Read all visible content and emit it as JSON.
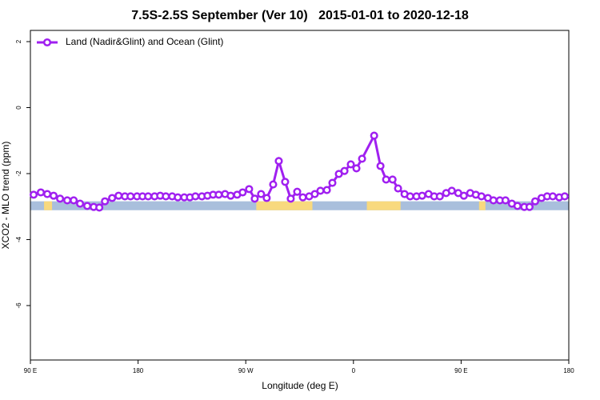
{
  "chart_data": {
    "type": "line",
    "title": "7.5S-2.5S September (Ver 10)   2015-01-01 to 2020-12-18",
    "xlabel": "Longitude (deg E)",
    "ylabel": "XCO2 - MLO trend (ppm)",
    "xlim": [
      90,
      540
    ],
    "ylim": [
      -7.65,
      2.34
    ],
    "xticks": [
      {
        "value": 90,
        "label": "90 E"
      },
      180,
      {
        "value": 270,
        "label": "90 W"
      },
      {
        "value": 360,
        "label": "0"
      },
      {
        "value": 450,
        "label": "90 E"
      },
      {
        "value": 540,
        "label": "180"
      }
    ],
    "yticks": [
      2,
      0,
      -2,
      -4,
      -6
    ],
    "legend": "top-left",
    "surface_band": {
      "ymin": -3.11,
      "ymax": -2.84,
      "ocean_color": "#a9bfdc",
      "land_color": "#f8d97e",
      "land": [
        [
          101.4,
          108.1
        ],
        [
          278.8,
          325.7
        ],
        [
          371.2,
          399.4
        ],
        [
          465,
          470.3
        ]
      ]
    },
    "x": [
      92.7,
      98.7,
      104.1,
      109.4,
      114.8,
      120.8,
      126.2,
      131.5,
      137.5,
      142.9,
      147.6,
      152.3,
      158.3,
      163.7,
      169.0,
      173.7,
      179.1,
      183.7,
      188.4,
      193.8,
      198.5,
      203.2,
      208.5,
      213.2,
      218.6,
      223.3,
      227.9,
      233.3,
      238.0,
      242.7,
      247.4,
      252.7,
      257.4,
      262.8,
      267.4,
      272.8,
      277.5,
      282.8,
      287.5,
      292.9,
      297.6,
      302.9,
      307.6,
      313.0,
      317.7,
      323.0,
      327.7,
      332.4,
      337.8,
      342.4,
      347.8,
      352.5,
      357.8,
      362.5,
      367.2,
      377.3,
      382.6,
      387.3,
      392.7,
      397.3,
      402.7,
      407.4,
      412.7,
      417.4,
      422.8,
      427.5,
      432.2,
      437.5,
      442.2,
      447.6,
      452.3,
      457.6,
      462.3,
      467.0,
      472.4,
      477.0,
      482.4,
      487.1,
      492.4,
      497.1,
      502.8,
      507.2,
      511.9,
      517.2,
      521.9,
      526.6,
      532.0,
      536.6
    ],
    "series": [
      {
        "name": "Land (Nadir&Glint) and Ocean (Glint)",
        "color": "#a020f0",
        "values": [
          -2.64,
          -2.57,
          -2.62,
          -2.67,
          -2.76,
          -2.81,
          -2.81,
          -2.91,
          -2.98,
          -3.01,
          -3.03,
          -2.84,
          -2.74,
          -2.67,
          -2.69,
          -2.69,
          -2.69,
          -2.69,
          -2.69,
          -2.69,
          -2.67,
          -2.69,
          -2.69,
          -2.72,
          -2.72,
          -2.72,
          -2.69,
          -2.69,
          -2.67,
          -2.64,
          -2.64,
          -2.62,
          -2.67,
          -2.64,
          -2.57,
          -2.47,
          -2.76,
          -2.62,
          -2.74,
          -2.33,
          -1.62,
          -2.25,
          -2.76,
          -2.55,
          -2.72,
          -2.69,
          -2.62,
          -2.52,
          -2.5,
          -2.28,
          -2.01,
          -1.92,
          -1.72,
          -1.84,
          -1.55,
          -0.85,
          -1.77,
          -2.18,
          -2.18,
          -2.45,
          -2.62,
          -2.69,
          -2.69,
          -2.67,
          -2.62,
          -2.69,
          -2.69,
          -2.59,
          -2.52,
          -2.59,
          -2.67,
          -2.59,
          -2.64,
          -2.69,
          -2.74,
          -2.81,
          -2.81,
          -2.81,
          -2.91,
          -2.98,
          -3.01,
          -3.01,
          -2.84,
          -2.74,
          -2.69,
          -2.69,
          -2.72,
          -2.69
        ]
      }
    ]
  }
}
